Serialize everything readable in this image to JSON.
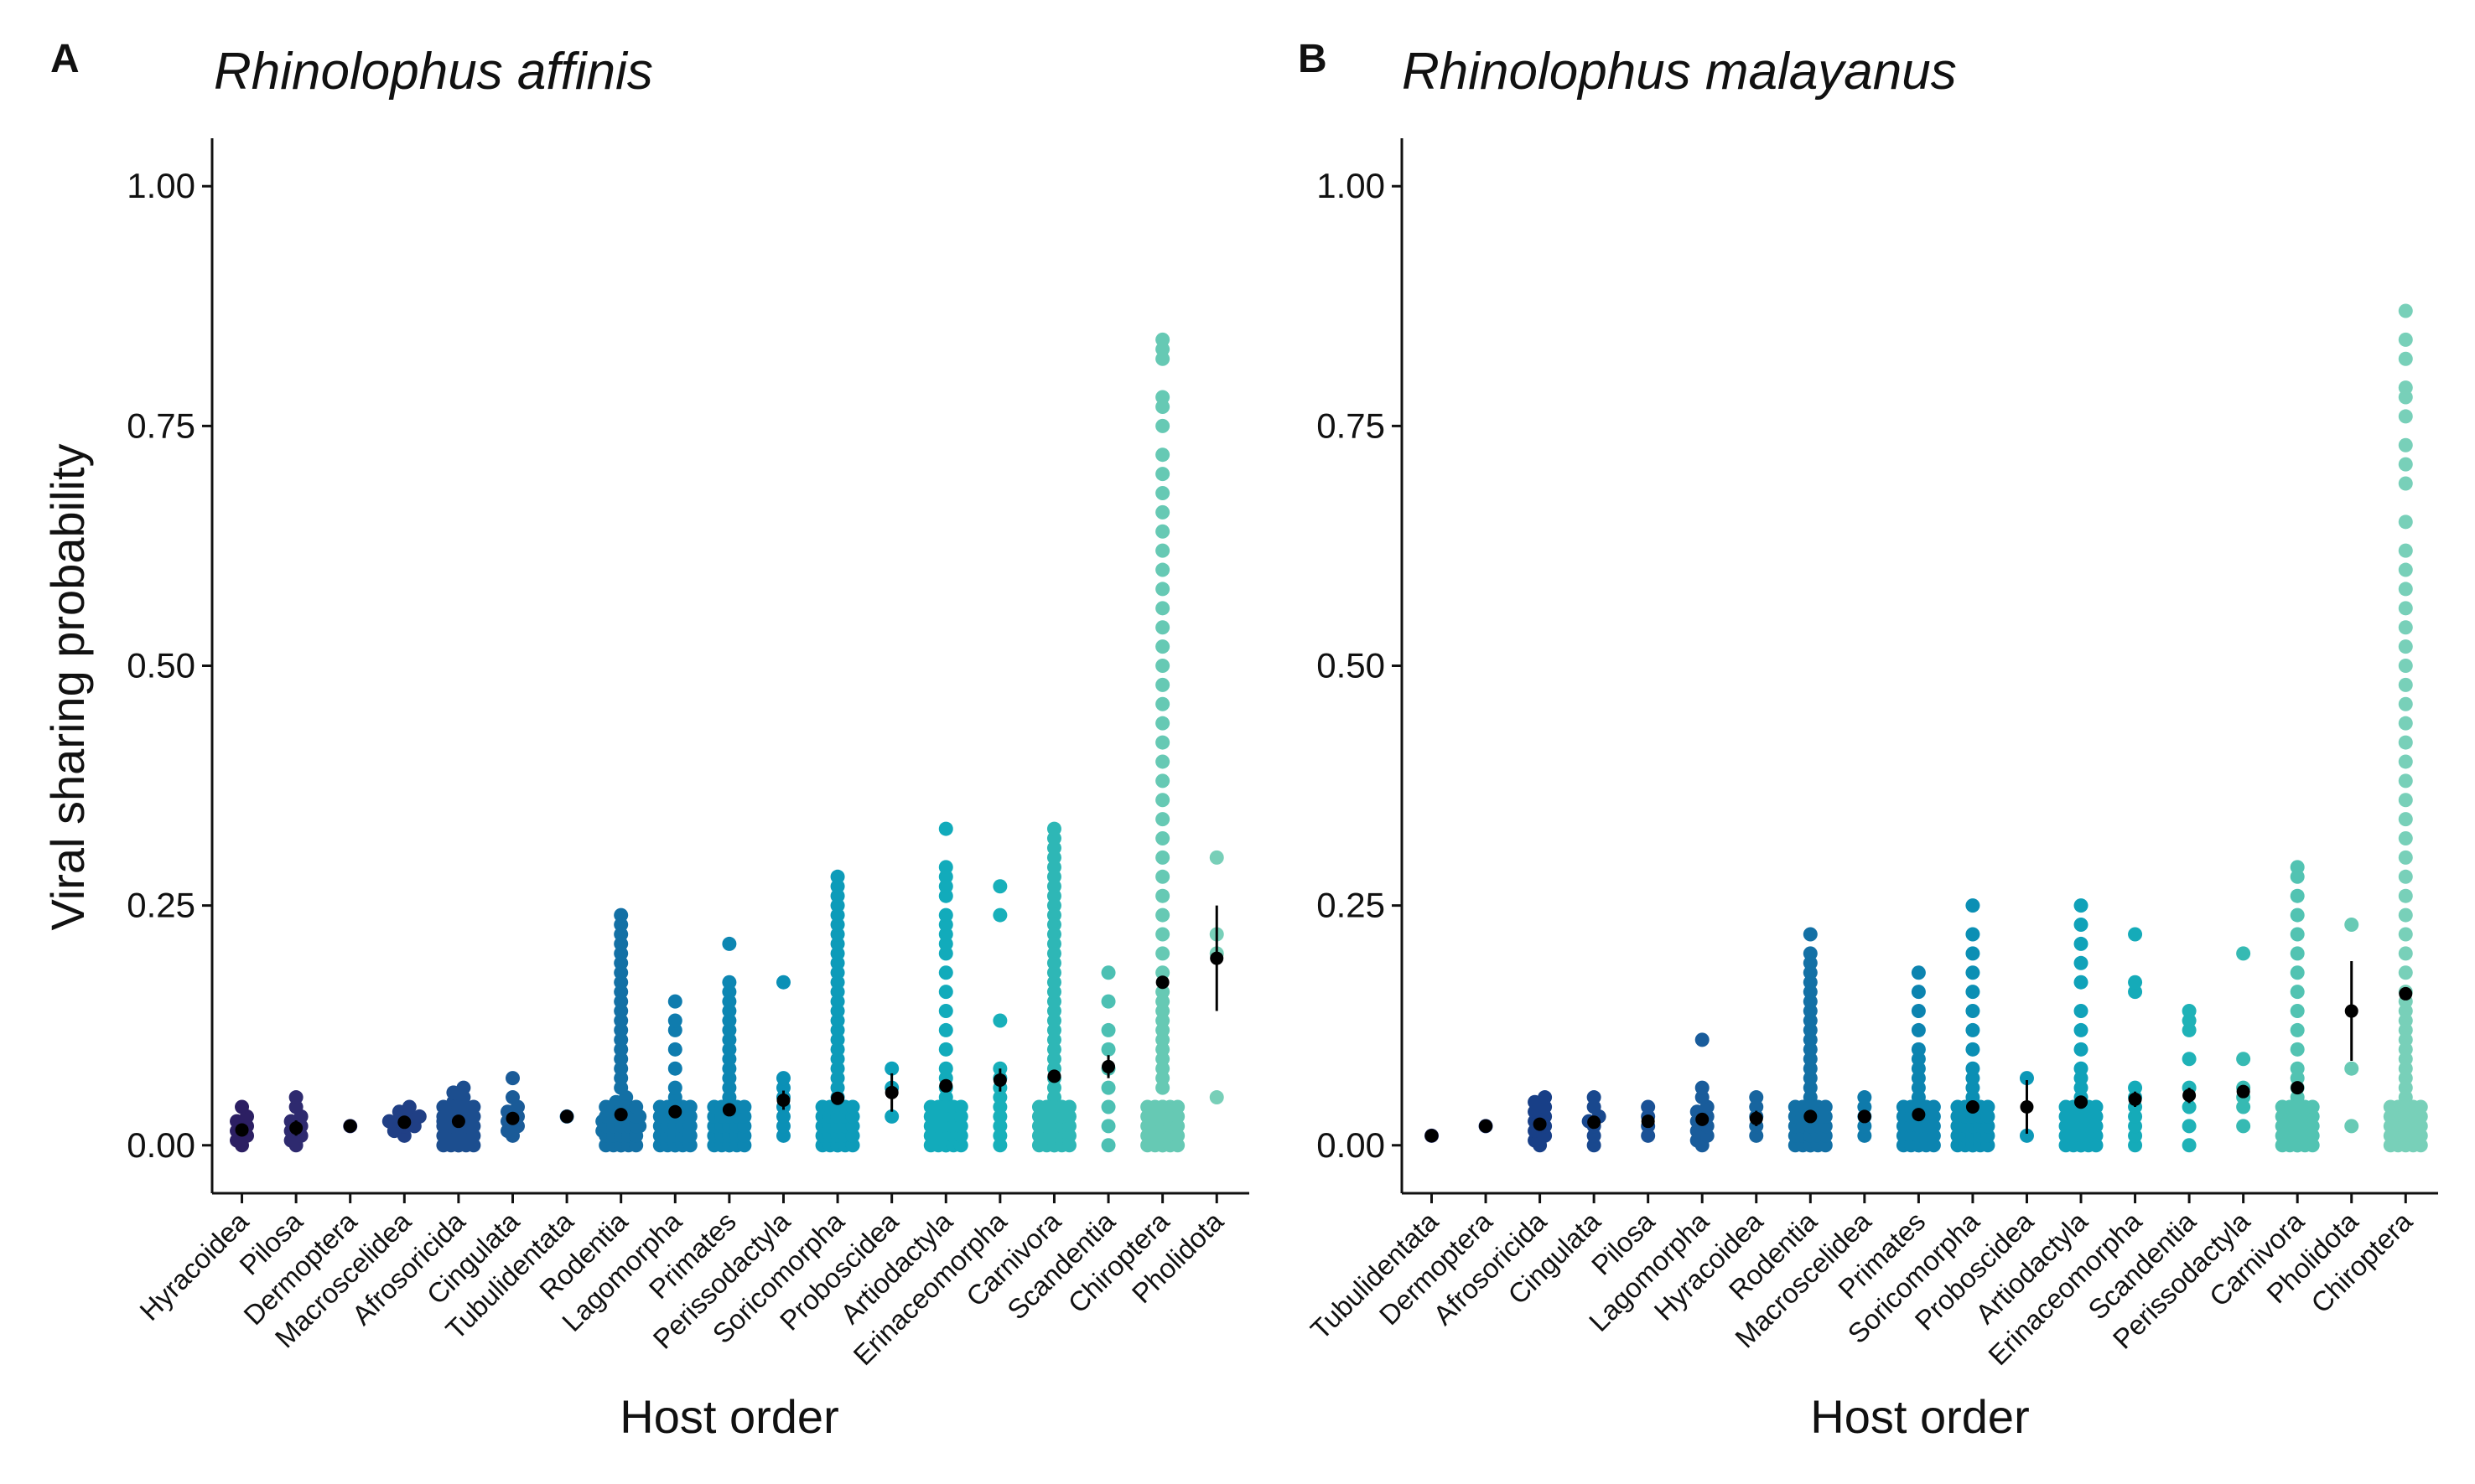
{
  "figure": {
    "ylabel": "Viral sharing probability",
    "xlabel": "Host order"
  },
  "chart_data": [
    {
      "type": "scatter",
      "panel_label": "A",
      "title": "Rhinolophus affinis",
      "xlabel": "Host order",
      "ylabel": "Viral sharing probability",
      "ylim": [
        -0.05,
        1.05
      ],
      "yticks": [
        0.0,
        0.25,
        0.5,
        0.75,
        1.0
      ],
      "ytick_labels": [
        "0.00",
        "0.25",
        "0.50",
        "0.75",
        "1.00"
      ],
      "grid": false,
      "categories": [
        "Hyracoidea",
        "Pilosa",
        "Dermoptera",
        "Macroscelidea",
        "Afrosoricida",
        "Cingulata",
        "Tubulidentata",
        "Rodentia",
        "Lagomorpha",
        "Primates",
        "Perissodactyla",
        "Soricomorpha",
        "Proboscidea",
        "Artiodactyla",
        "Erinaceomorpha",
        "Carnivora",
        "Scandentia",
        "Chiroptera",
        "Pholidota"
      ],
      "colors": [
        "#2c1f63",
        "#2e2a6f",
        "#2c3376",
        "#203f85",
        "#1c4e8f",
        "#1a5b98",
        "#1a649d",
        "#1370a5",
        "#0f7cae",
        "#0d86b2",
        "#0b90b6",
        "#0d9bb9",
        "#0ea2bb",
        "#12abbb",
        "#18b0ba",
        "#2eb7b6",
        "#4cc0b3",
        "#66c9b4",
        "#78cfb8"
      ],
      "mean": [
        0.016,
        0.018,
        0.02,
        0.024,
        0.025,
        0.028,
        0.03,
        0.032,
        0.035,
        0.037,
        0.047,
        0.049,
        0.055,
        0.062,
        0.068,
        0.072,
        0.082,
        0.17,
        0.195
      ],
      "error": [
        0.006,
        0.008,
        0.0,
        0.004,
        0.003,
        0.004,
        0.0,
        0.002,
        0.003,
        0.003,
        0.01,
        0.003,
        0.02,
        0.003,
        0.012,
        0.004,
        0.012,
        0.004,
        0.055
      ],
      "points": [
        [
          0.0,
          0.005,
          0.01,
          0.015,
          0.02,
          0.025,
          0.03,
          0.04
        ],
        [
          0.0,
          0.005,
          0.01,
          0.015,
          0.02,
          0.025,
          0.03,
          0.04,
          0.05
        ],
        [
          0.02
        ],
        [
          0.01,
          0.015,
          0.02,
          0.02,
          0.025,
          0.025,
          0.03,
          0.03,
          0.035,
          0.04
        ],
        [
          0.0,
          0.005,
          0.01,
          0.015,
          0.02,
          0.02,
          0.025,
          0.025,
          0.03,
          0.03,
          0.035,
          0.04,
          0.045,
          0.05,
          0.055,
          0.06
        ],
        [
          0.01,
          0.015,
          0.02,
          0.025,
          0.03,
          0.035,
          0.04,
          0.05,
          0.07
        ],
        [
          0.03
        ],
        [
          0.0,
          0.005,
          0.01,
          0.01,
          0.015,
          0.015,
          0.02,
          0.02,
          0.02,
          0.025,
          0.025,
          0.025,
          0.03,
          0.03,
          0.035,
          0.04,
          0.045,
          0.05,
          0.06,
          0.07,
          0.08,
          0.09,
          0.1,
          0.11,
          0.12,
          0.13,
          0.14,
          0.15,
          0.16,
          0.17,
          0.18,
          0.19,
          0.2,
          0.21,
          0.22,
          0.23,
          0.24
        ],
        [
          0.0,
          0.005,
          0.01,
          0.015,
          0.02,
          0.025,
          0.03,
          0.035,
          0.04,
          0.05,
          0.06,
          0.08,
          0.1,
          0.12,
          0.13,
          0.15
        ],
        [
          0.0,
          0.005,
          0.01,
          0.015,
          0.02,
          0.025,
          0.03,
          0.035,
          0.04,
          0.05,
          0.06,
          0.07,
          0.08,
          0.09,
          0.1,
          0.11,
          0.12,
          0.13,
          0.14,
          0.15,
          0.16,
          0.17,
          0.21
        ],
        [
          0.01,
          0.02,
          0.03,
          0.04,
          0.05,
          0.06,
          0.07,
          0.17
        ],
        [
          0.0,
          0.005,
          0.01,
          0.015,
          0.02,
          0.025,
          0.03,
          0.035,
          0.04,
          0.05,
          0.06,
          0.07,
          0.08,
          0.09,
          0.1,
          0.11,
          0.12,
          0.13,
          0.14,
          0.15,
          0.16,
          0.17,
          0.18,
          0.19,
          0.2,
          0.21,
          0.22,
          0.23,
          0.24,
          0.25,
          0.26,
          0.27,
          0.28
        ],
        [
          0.03,
          0.06,
          0.08
        ],
        [
          0.0,
          0.005,
          0.01,
          0.015,
          0.02,
          0.025,
          0.03,
          0.035,
          0.04,
          0.05,
          0.06,
          0.07,
          0.08,
          0.1,
          0.12,
          0.14,
          0.16,
          0.18,
          0.2,
          0.21,
          0.22,
          0.23,
          0.24,
          0.26,
          0.27,
          0.28,
          0.29,
          0.33
        ],
        [
          0.0,
          0.01,
          0.02,
          0.03,
          0.04,
          0.05,
          0.06,
          0.07,
          0.08,
          0.13,
          0.24,
          0.27
        ],
        [
          0.0,
          0.005,
          0.01,
          0.015,
          0.02,
          0.025,
          0.03,
          0.035,
          0.04,
          0.05,
          0.06,
          0.07,
          0.08,
          0.09,
          0.1,
          0.11,
          0.12,
          0.13,
          0.14,
          0.15,
          0.16,
          0.17,
          0.18,
          0.19,
          0.2,
          0.21,
          0.22,
          0.23,
          0.24,
          0.25,
          0.26,
          0.27,
          0.28,
          0.29,
          0.3,
          0.31,
          0.32,
          0.33
        ],
        [
          0.0,
          0.02,
          0.04,
          0.06,
          0.08,
          0.1,
          0.12,
          0.15,
          0.18
        ],
        [
          0.0,
          0.04,
          0.06,
          0.07,
          0.08,
          0.09,
          0.1,
          0.11,
          0.12,
          0.13,
          0.14,
          0.15,
          0.16,
          0.18,
          0.2,
          0.22,
          0.24,
          0.26,
          0.28,
          0.3,
          0.32,
          0.34,
          0.36,
          0.38,
          0.4,
          0.42,
          0.44,
          0.46,
          0.48,
          0.5,
          0.52,
          0.54,
          0.56,
          0.58,
          0.6,
          0.62,
          0.64,
          0.66,
          0.68,
          0.7,
          0.72,
          0.75,
          0.77,
          0.78,
          0.82,
          0.83,
          0.84
        ],
        [
          0.05,
          0.2,
          0.22,
          0.3
        ]
      ]
    },
    {
      "type": "scatter",
      "panel_label": "B",
      "title": "Rhinolophus malayanus",
      "xlabel": "Host order",
      "ylabel": "Viral sharing probability",
      "ylim": [
        -0.05,
        1.05
      ],
      "yticks": [
        0.0,
        0.25,
        0.5,
        0.75,
        1.0
      ],
      "ytick_labels": [
        "0.00",
        "0.25",
        "0.50",
        "0.75",
        "1.00"
      ],
      "grid": false,
      "categories": [
        "Tubulidentata",
        "Dermoptera",
        "Afrosoricida",
        "Cingulata",
        "Pilosa",
        "Lagomorpha",
        "Hyracoidea",
        "Rodentia",
        "Macroscelidea",
        "Primates",
        "Soricomorpha",
        "Proboscidea",
        "Artiodactyla",
        "Erinaceomorpha",
        "Scandentia",
        "Perissodactyla",
        "Carnivora",
        "Pholidota",
        "Chiroptera"
      ],
      "colors": [
        "#1f2a6b",
        "#1c3578",
        "#183f87",
        "#19488e",
        "#1a5196",
        "#195c9b",
        "#17659f",
        "#1370a5",
        "#0f7aab",
        "#0c84b0",
        "#0b8fb4",
        "#0c98b7",
        "#10a2b9",
        "#15abb9",
        "#1fb2b7",
        "#36bab3",
        "#52c3b2",
        "#68cab5",
        "#78d0b9"
      ],
      "mean": [
        0.01,
        0.02,
        0.022,
        0.024,
        0.025,
        0.027,
        0.028,
        0.03,
        0.03,
        0.032,
        0.04,
        0.04,
        0.045,
        0.048,
        0.052,
        0.056,
        0.06,
        0.14,
        0.158
      ],
      "error": [
        0.0,
        0.0,
        0.003,
        0.004,
        0.006,
        0.003,
        0.008,
        0.002,
        0.004,
        0.003,
        0.003,
        0.028,
        0.004,
        0.008,
        0.008,
        0.006,
        0.004,
        0.052,
        0.004
      ],
      "points": [
        [
          0.01
        ],
        [
          0.02
        ],
        [
          0.0,
          0.005,
          0.01,
          0.015,
          0.02,
          0.025,
          0.03,
          0.035,
          0.04,
          0.045,
          0.05
        ],
        [
          0.0,
          0.01,
          0.02,
          0.025,
          0.03,
          0.04,
          0.05
        ],
        [
          0.01,
          0.02,
          0.03,
          0.04
        ],
        [
          0.0,
          0.005,
          0.01,
          0.015,
          0.02,
          0.025,
          0.03,
          0.035,
          0.04,
          0.05,
          0.06,
          0.11
        ],
        [
          0.01,
          0.02,
          0.03,
          0.04,
          0.05
        ],
        [
          0.0,
          0.005,
          0.01,
          0.015,
          0.02,
          0.025,
          0.03,
          0.035,
          0.04,
          0.05,
          0.06,
          0.07,
          0.08,
          0.09,
          0.1,
          0.11,
          0.12,
          0.13,
          0.14,
          0.15,
          0.16,
          0.17,
          0.18,
          0.19,
          0.2,
          0.22
        ],
        [
          0.01,
          0.02,
          0.03,
          0.04,
          0.05
        ],
        [
          0.0,
          0.005,
          0.01,
          0.015,
          0.02,
          0.025,
          0.03,
          0.035,
          0.04,
          0.05,
          0.06,
          0.07,
          0.08,
          0.09,
          0.1,
          0.12,
          0.14,
          0.16,
          0.18
        ],
        [
          0.0,
          0.005,
          0.01,
          0.015,
          0.02,
          0.025,
          0.03,
          0.035,
          0.04,
          0.05,
          0.06,
          0.07,
          0.08,
          0.1,
          0.12,
          0.14,
          0.16,
          0.18,
          0.2,
          0.22,
          0.25
        ],
        [
          0.01,
          0.07
        ],
        [
          0.0,
          0.01,
          0.02,
          0.03,
          0.04,
          0.05,
          0.06,
          0.07,
          0.08,
          0.1,
          0.12,
          0.14,
          0.17,
          0.19,
          0.21,
          0.23,
          0.25
        ],
        [
          0.0,
          0.01,
          0.02,
          0.03,
          0.04,
          0.05,
          0.06,
          0.16,
          0.17,
          0.22
        ],
        [
          0.0,
          0.02,
          0.04,
          0.06,
          0.09,
          0.12,
          0.13,
          0.14
        ],
        [
          0.02,
          0.04,
          0.05,
          0.06,
          0.09,
          0.2
        ],
        [
          0.0,
          0.01,
          0.02,
          0.03,
          0.04,
          0.05,
          0.06,
          0.07,
          0.08,
          0.1,
          0.12,
          0.14,
          0.16,
          0.18,
          0.2,
          0.22,
          0.24,
          0.26,
          0.28,
          0.29
        ],
        [
          0.02,
          0.08,
          0.23
        ],
        [
          0.03,
          0.05,
          0.06,
          0.07,
          0.08,
          0.09,
          0.1,
          0.11,
          0.12,
          0.13,
          0.14,
          0.15,
          0.16,
          0.18,
          0.2,
          0.22,
          0.24,
          0.26,
          0.28,
          0.3,
          0.32,
          0.34,
          0.36,
          0.38,
          0.4,
          0.42,
          0.44,
          0.46,
          0.48,
          0.5,
          0.52,
          0.54,
          0.56,
          0.58,
          0.6,
          0.62,
          0.65,
          0.69,
          0.71,
          0.73,
          0.76,
          0.78,
          0.79,
          0.82,
          0.84,
          0.87
        ]
      ]
    }
  ]
}
